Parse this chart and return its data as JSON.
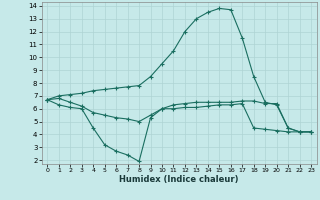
{
  "xlabel": "Humidex (Indice chaleur)",
  "background_color": "#c6e9e9",
  "grid_color": "#aed4d4",
  "line_color": "#1a6e60",
  "xlim": [
    -0.5,
    23.5
  ],
  "ylim": [
    1.7,
    14.3
  ],
  "xticks": [
    0,
    1,
    2,
    3,
    4,
    5,
    6,
    7,
    8,
    9,
    10,
    11,
    12,
    13,
    14,
    15,
    16,
    17,
    18,
    19,
    20,
    21,
    22,
    23
  ],
  "yticks": [
    2,
    3,
    4,
    5,
    6,
    7,
    8,
    9,
    10,
    11,
    12,
    13,
    14
  ],
  "curve1_x": [
    0,
    1,
    2,
    3,
    4,
    5,
    6,
    7,
    8,
    9,
    10,
    11,
    12,
    13,
    14,
    15,
    16,
    17,
    18,
    19,
    20,
    21,
    22,
    23
  ],
  "curve1_y": [
    6.7,
    7.0,
    7.1,
    7.2,
    7.4,
    7.5,
    7.6,
    7.7,
    7.8,
    8.5,
    9.5,
    10.5,
    12.0,
    13.0,
    13.5,
    13.8,
    13.7,
    11.5,
    8.5,
    6.5,
    6.3,
    4.5,
    4.2,
    4.2
  ],
  "curve2_x": [
    0,
    1,
    2,
    3,
    4,
    5,
    6,
    7,
    8,
    9,
    10,
    11,
    12,
    13,
    14,
    15,
    16,
    17,
    18,
    19,
    20,
    21,
    22,
    23
  ],
  "curve2_y": [
    6.7,
    6.3,
    6.1,
    6.0,
    4.5,
    3.2,
    2.7,
    2.4,
    1.9,
    5.3,
    6.0,
    6.0,
    6.1,
    6.1,
    6.2,
    6.3,
    6.3,
    6.4,
    4.5,
    4.4,
    4.3,
    4.2,
    4.2,
    4.2
  ],
  "curve3_x": [
    0,
    1,
    2,
    3,
    4,
    5,
    6,
    7,
    8,
    9,
    10,
    11,
    12,
    13,
    14,
    15,
    16,
    17,
    18,
    19,
    20,
    21,
    22,
    23
  ],
  "curve3_y": [
    6.7,
    6.8,
    6.5,
    6.2,
    5.7,
    5.5,
    5.3,
    5.2,
    5.0,
    5.5,
    6.0,
    6.3,
    6.4,
    6.5,
    6.5,
    6.5,
    6.5,
    6.6,
    6.6,
    6.4,
    6.4,
    4.5,
    4.2,
    4.2
  ]
}
